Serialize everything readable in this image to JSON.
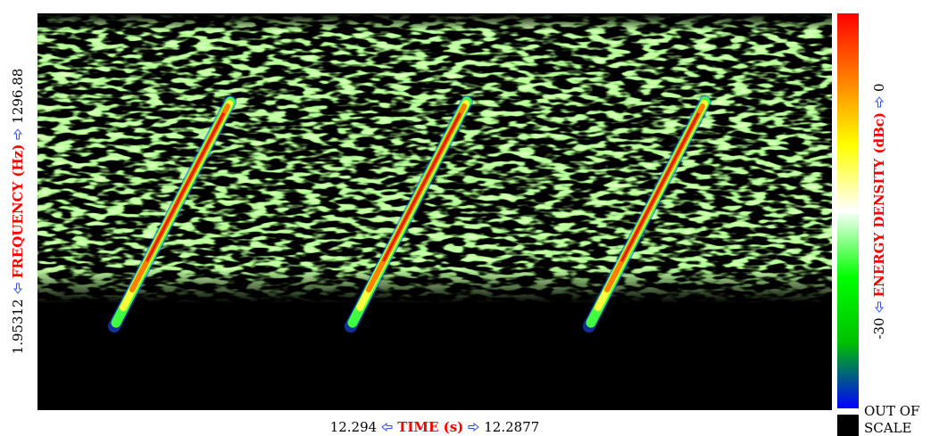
{
  "chart_data": {
    "type": "spectrogram",
    "x_label": "TIME (s)",
    "y_label": "FREQUENCY (Hz)",
    "xlim": [
      12.294,
      12.2877
    ],
    "ylim": [
      1.95312,
      1296.88
    ],
    "colorbar": {
      "label": "ENERGY DENSITY (dBc)",
      "lim": [
        -30,
        0
      ],
      "colors": [
        "#0000ff",
        "#00c000",
        "#00ff00",
        "#ffffff",
        "#ffff00",
        "#ff8000",
        "#ff0000"
      ]
    },
    "out_of_scale": {
      "label": "OUT OF SCALE",
      "color": "#000000"
    }
  }
}
